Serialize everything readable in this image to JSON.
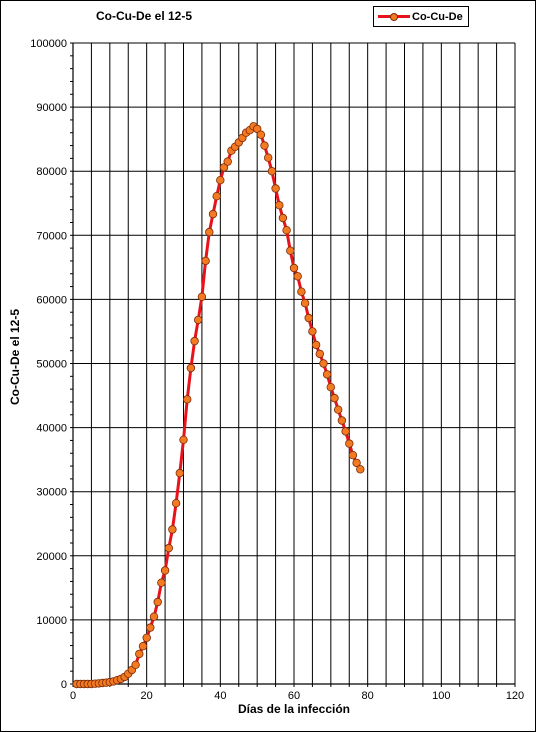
{
  "chart_data": {
    "type": "line",
    "title": "Co-Cu-De el 12-5",
    "xlabel": "Días de la infección",
    "ylabel": "Co-Cu-De el 12-5",
    "xlim": [
      0,
      120
    ],
    "ylim": [
      0,
      100000
    ],
    "x_ticks": [
      "0",
      "20",
      "40",
      "60",
      "80",
      "100",
      "120"
    ],
    "y_ticks": [
      "0",
      "10000",
      "20000",
      "30000",
      "40000",
      "50000",
      "60000",
      "70000",
      "80000",
      "90000",
      "100000"
    ],
    "grid": true,
    "legend_position": "top-right",
    "line_color": "#e8131a",
    "marker_color": "#f47a22",
    "series": [
      {
        "name": "Co-Cu-De",
        "x": [
          1,
          2,
          3,
          4,
          5,
          6,
          7,
          8,
          9,
          10,
          11,
          12,
          13,
          14,
          15,
          16,
          17,
          18,
          19,
          20,
          21,
          22,
          23,
          24,
          25,
          26,
          27,
          28,
          29,
          30,
          31,
          32,
          33,
          34,
          35,
          36,
          37,
          38,
          39,
          40,
          41,
          42,
          43,
          44,
          45,
          46,
          47,
          48,
          49,
          50,
          51,
          52,
          53,
          54,
          55,
          56,
          57,
          58,
          59,
          60,
          61,
          62,
          63,
          64,
          65,
          66,
          67,
          68,
          69,
          70,
          71,
          72,
          73,
          74,
          75,
          76,
          77,
          78
        ],
        "values": [
          0,
          0,
          0,
          0,
          0,
          50,
          100,
          150,
          200,
          300,
          400,
          600,
          800,
          1100,
          1600,
          2200,
          3000,
          4700,
          5900,
          7200,
          8800,
          10500,
          12800,
          15800,
          17700,
          21200,
          24100,
          28200,
          32900,
          38100,
          44400,
          49300,
          53500,
          56800,
          60400,
          66000,
          70500,
          73300,
          76100,
          78600,
          80600,
          81500,
          83200,
          83800,
          84500,
          85200,
          86000,
          86400,
          87000,
          86600,
          85700,
          84000,
          82100,
          80000,
          77300,
          74700,
          72700,
          70800,
          67600,
          64900,
          63600,
          61200,
          59400,
          57100,
          55000,
          52900,
          51500,
          50000,
          48300,
          46300,
          44600,
          42800,
          41100,
          39400,
          37500,
          35700,
          34500,
          33500
        ]
      }
    ]
  }
}
